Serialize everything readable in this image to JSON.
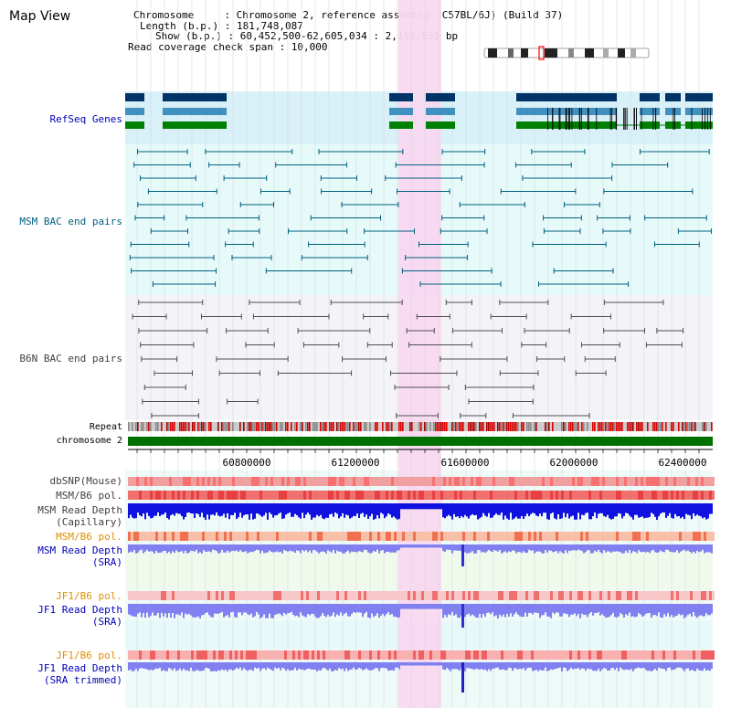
{
  "title": "Map View",
  "info": {
    "line1": "Chromosome     : Chromosome 2, reference assembly (C57BL/6J) (Build 37)",
    "line2": "Length (b.p.) : 181,748,087",
    "line3": "Show (b.p.) : 60,452,500-62,605,034 : 2,152,535 bp",
    "line4": "Read coverage check span : 10,000"
  },
  "tracks": {
    "refseq": "RefSeq Genes",
    "msm_bac": "MSM BAC end pairs",
    "b6n_bac": "B6N BAC end pairs",
    "repeat": "Repeat",
    "chromosome": "chromosome 2",
    "dbsnp": "dbSNP(Mouse)",
    "msm_b6_pol1": "MSM/B6 pol.",
    "msm_depth_cap_1": "MSM Read Depth",
    "msm_depth_cap_2": "(Capillary)",
    "msm_b6_pol2": "MSM/B6 pol.",
    "msm_depth_sra_1": "MSM Read Depth",
    "msm_depth_sra_2": "(SRA)",
    "jf1_b6_pol1": "JF1/B6 pol.",
    "jf1_depth_sra_1": "JF1 Read Depth",
    "jf1_depth_sra_2": "(SRA)",
    "jf1_b6_pol2": "JF1/B6 pol.",
    "jf1_depth_trim_1": "JF1 Read Depth",
    "jf1_depth_trim_2": "(SRA trimmed)"
  },
  "axis": {
    "ticks": [
      "60800000",
      "61200000",
      "61600000",
      "62000000",
      "62400000"
    ]
  },
  "colors": {
    "highlight": "#f8d8f0",
    "refseq_bg": "#d8f0f8",
    "bac_bg": "#e8fafa",
    "gene_dark": "#003366",
    "gene_mid": "#4090c0",
    "gene_green": "#008000",
    "msm_bac": "#006080",
    "b6n_bac": "#505050",
    "chromosome": "#007000",
    "depth_blue": "#1010e0",
    "depth_sra": "#8080f0"
  }
}
